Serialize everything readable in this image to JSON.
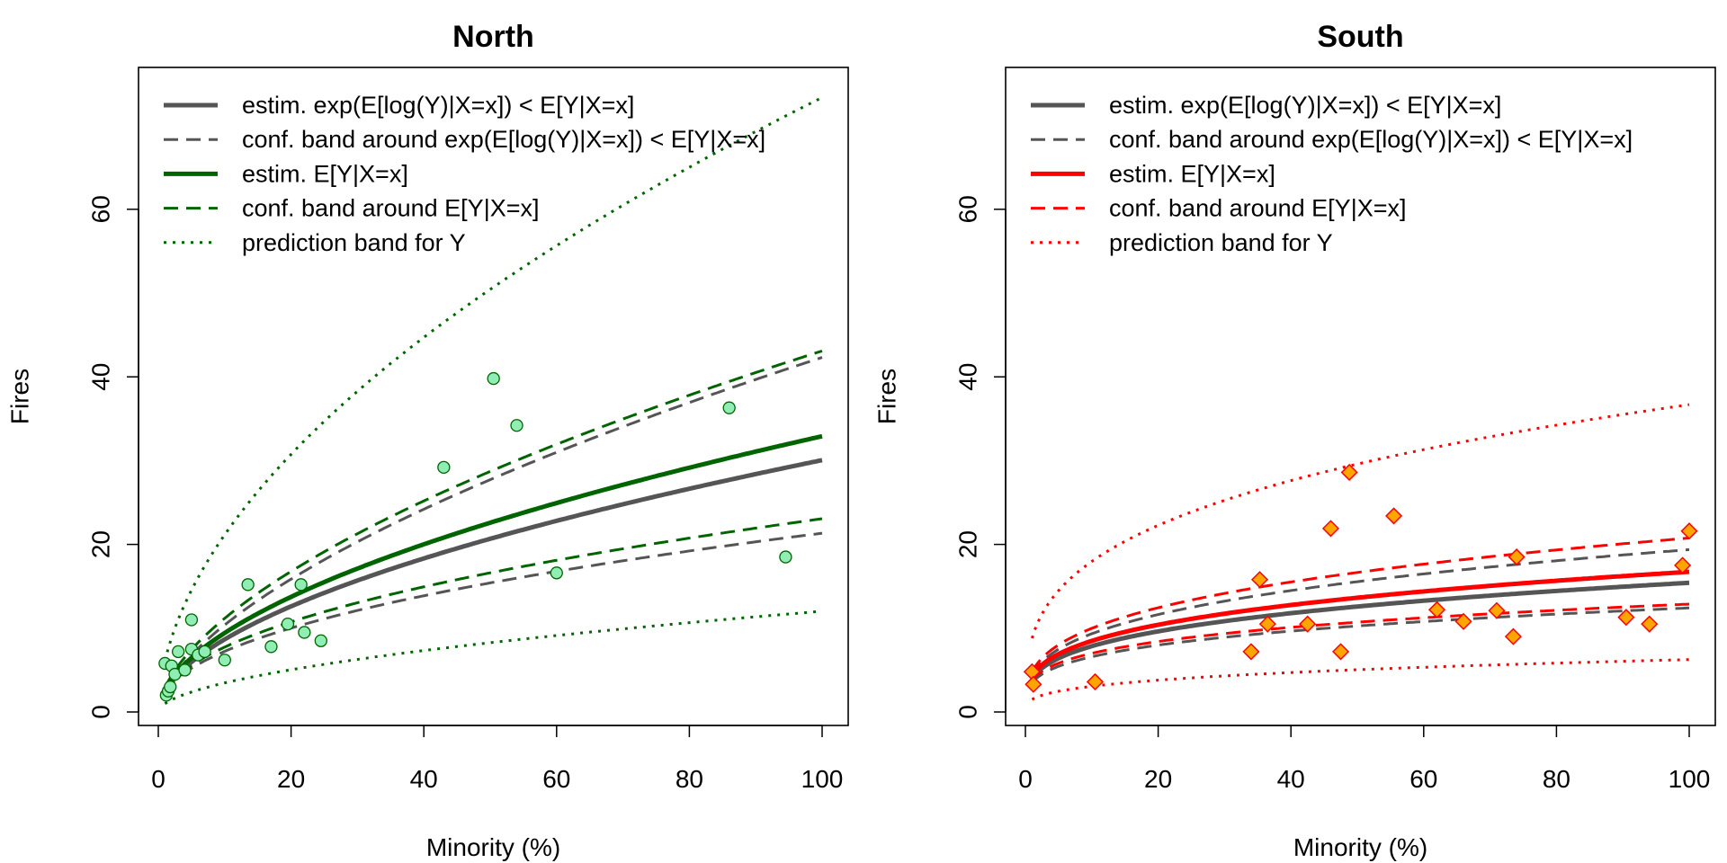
{
  "chart_data": [
    {
      "type": "scatter",
      "title": "North",
      "xlabel": "Minority (%)",
      "ylabel": "Fires",
      "xlim": [
        0,
        100
      ],
      "ylim": [
        0,
        75
      ],
      "xticks": [
        0,
        20,
        40,
        60,
        80,
        100
      ],
      "yticks": [
        0,
        20,
        40,
        60
      ],
      "legend_position": "top-left",
      "colors": {
        "fit": "#006400",
        "ref": "#555555",
        "point_fill": "#90EEB4",
        "point_stroke": "#006400"
      },
      "legend": [
        "estim. exp(E[log(Y)|X=x]) < E[Y|X=x]",
        "conf. band around exp(E[log(Y)|X=x]) < E[Y|X=x]",
        "estim. E[Y|X=x]",
        "conf. band around E[Y|X=x]",
        "prediction band for Y"
      ],
      "points": [
        {
          "x": 1.0,
          "y": 5.8
        },
        {
          "x": 1.2,
          "y": 2.0
        },
        {
          "x": 1.5,
          "y": 2.5
        },
        {
          "x": 1.8,
          "y": 3.0
        },
        {
          "x": 2.0,
          "y": 5.5
        },
        {
          "x": 2.5,
          "y": 4.5
        },
        {
          "x": 3.0,
          "y": 7.2
        },
        {
          "x": 4.0,
          "y": 5.0
        },
        {
          "x": 5.0,
          "y": 11.0
        },
        {
          "x": 5.0,
          "y": 7.5
        },
        {
          "x": 6.0,
          "y": 6.8
        },
        {
          "x": 7.0,
          "y": 7.2
        },
        {
          "x": 10.0,
          "y": 6.2
        },
        {
          "x": 13.5,
          "y": 15.2
        },
        {
          "x": 17.0,
          "y": 7.8
        },
        {
          "x": 19.5,
          "y": 10.5
        },
        {
          "x": 21.5,
          "y": 15.2
        },
        {
          "x": 22.0,
          "y": 9.5
        },
        {
          "x": 24.5,
          "y": 8.5
        },
        {
          "x": 43.0,
          "y": 29.2
        },
        {
          "x": 50.5,
          "y": 39.8
        },
        {
          "x": 54.0,
          "y": 34.2
        },
        {
          "x": 60.0,
          "y": 16.6
        },
        {
          "x": 86.0,
          "y": 36.3
        },
        {
          "x": 94.5,
          "y": 18.5
        }
      ],
      "curves": {
        "exp_log_fit": {
          "a": 2.5,
          "b": 0.54
        },
        "exp_log_conf_lower": {
          "a": 2.45,
          "b": 0.47
        },
        "exp_log_conf_upper": {
          "a": 2.55,
          "b": 0.61
        },
        "mean_fit": {
          "a": 2.7,
          "b": 0.543
        },
        "mean_conf_lower": {
          "a": 2.6,
          "b": 0.474
        },
        "mean_conf_upper": {
          "a": 2.9,
          "b": 0.586
        },
        "pred_lower": {
          "a": 1.0,
          "b": 0.54
        },
        "pred_upper": {
          "a": 6.1,
          "b": 0.54
        }
      }
    },
    {
      "type": "scatter",
      "title": "South",
      "xlabel": "Minority (%)",
      "ylabel": "Fires",
      "xlim": [
        0,
        100
      ],
      "ylim": [
        0,
        75
      ],
      "xticks": [
        0,
        20,
        40,
        60,
        80,
        100
      ],
      "yticks": [
        0,
        20,
        40,
        60
      ],
      "legend_position": "top-left",
      "colors": {
        "fit": "#FF0000",
        "ref": "#555555",
        "point_fill": "#FFA500",
        "point_stroke": "#FF0000"
      },
      "legend": [
        "estim. exp(E[log(Y)|X=x]) < E[Y|X=x]",
        "conf. band around exp(E[log(Y)|X=x]) < E[Y|X=x]",
        "estim. E[Y|X=x]",
        "conf. band around E[Y|X=x]",
        "prediction band for Y"
      ],
      "points": [
        {
          "x": 1.0,
          "y": 4.8
        },
        {
          "x": 1.2,
          "y": 3.3
        },
        {
          "x": 10.5,
          "y": 3.6
        },
        {
          "x": 34.0,
          "y": 7.2
        },
        {
          "x": 35.3,
          "y": 15.8
        },
        {
          "x": 36.5,
          "y": 10.5
        },
        {
          "x": 42.5,
          "y": 10.5
        },
        {
          "x": 46.0,
          "y": 21.9
        },
        {
          "x": 47.5,
          "y": 7.2
        },
        {
          "x": 48.8,
          "y": 28.6
        },
        {
          "x": 55.5,
          "y": 23.4
        },
        {
          "x": 62.0,
          "y": 12.2
        },
        {
          "x": 66.0,
          "y": 10.8
        },
        {
          "x": 71.0,
          "y": 12.1
        },
        {
          "x": 73.5,
          "y": 9.0
        },
        {
          "x": 74.0,
          "y": 18.5
        },
        {
          "x": 90.5,
          "y": 11.3
        },
        {
          "x": 94.0,
          "y": 10.5
        },
        {
          "x": 99.0,
          "y": 17.5
        },
        {
          "x": 100.0,
          "y": 21.6
        }
      ],
      "curves": {
        "exp_log_fit": {
          "a": 4.0,
          "b": 0.293
        },
        "exp_log_conf_lower": {
          "a": 3.5,
          "b": 0.275
        },
        "exp_log_conf_upper": {
          "a": 4.5,
          "b": 0.317
        },
        "mean_fit": {
          "a": 4.3,
          "b": 0.295
        },
        "mean_conf_lower": {
          "a": 3.8,
          "b": 0.265
        },
        "mean_conf_upper": {
          "a": 4.8,
          "b": 0.318
        },
        "pred_lower": {
          "a": 1.5,
          "b": 0.31
        },
        "pred_upper": {
          "a": 8.8,
          "b": 0.31
        }
      }
    }
  ]
}
